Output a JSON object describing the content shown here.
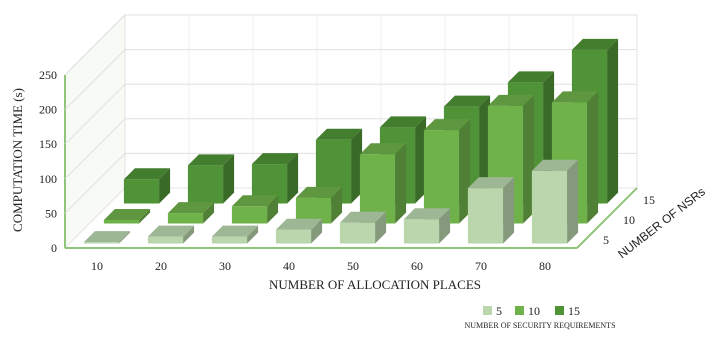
{
  "chart_data": {
    "type": "bar",
    "style": "3d-clustered-depth",
    "categories": [
      "10",
      "20",
      "30",
      "40",
      "50",
      "60",
      "70",
      "80"
    ],
    "series": [
      {
        "name": "5",
        "values": [
          2,
          10,
          10,
          20,
          30,
          35,
          80,
          105
        ],
        "color": "#b9d6ad"
      },
      {
        "name": "10",
        "values": [
          5,
          15,
          25,
          37,
          100,
          135,
          170,
          175
        ],
        "color": "#6fb24a"
      },
      {
        "name": "15",
        "values": [
          35,
          55,
          57,
          92,
          110,
          140,
          175,
          222
        ],
        "color": "#4f9336"
      }
    ],
    "depth_labels": [
      "5",
      "10",
      "15"
    ],
    "ylim": [
      0,
      250
    ],
    "yticks": [
      "0",
      "50",
      "100",
      "150",
      "200",
      "250"
    ],
    "ylabel": "COMPUTATION TIME (s)",
    "xlabel": "NUMBER OF ALLOCATION PLACES",
    "zlabel": "NUMBER OF NSRs",
    "legend_title": "NUMBER OF SECURITY REQUIREMENTS",
    "legend_position": "bottom-right",
    "grid": true,
    "wall_color": "#8fc47a"
  }
}
